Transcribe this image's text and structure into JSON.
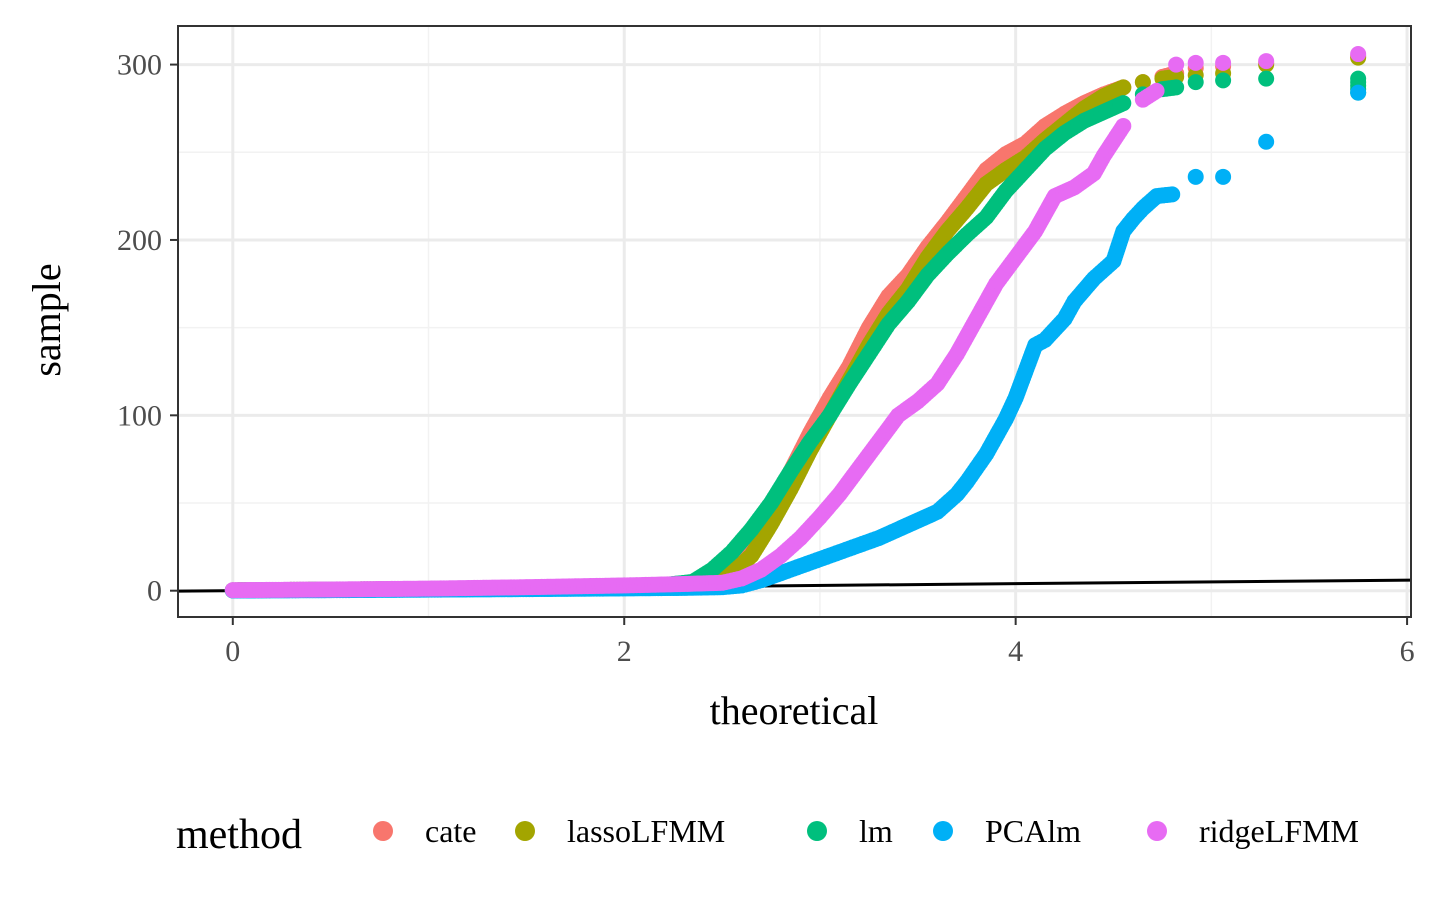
{
  "chart_data": {
    "type": "scatter",
    "title": "",
    "xlabel": "theoretical",
    "ylabel": "sample",
    "xlim": [
      -0.28,
      6.02
    ],
    "ylim": [
      -15,
      322
    ],
    "x_ticks": [
      0,
      2,
      4,
      6
    ],
    "y_ticks": [
      0,
      100,
      200,
      300
    ],
    "x_tick_labels": [
      "0",
      "2",
      "4",
      "6"
    ],
    "y_tick_labels": [
      "0",
      "100",
      "200",
      "300"
    ],
    "grid": true,
    "legend": {
      "title": "method",
      "placement": "bottom"
    },
    "reference_line": {
      "slope": 1,
      "intercept": 0
    },
    "series": [
      {
        "name": "cate",
        "color": "#F8766D",
        "points": [
          [
            0,
            0.2
          ],
          [
            0.5,
            0.6
          ],
          [
            1.0,
            1.0
          ],
          [
            1.5,
            1.6
          ],
          [
            2.0,
            2.5
          ],
          [
            2.2,
            3.2
          ],
          [
            2.35,
            4.5
          ],
          [
            2.45,
            8
          ],
          [
            2.55,
            14
          ],
          [
            2.65,
            25
          ],
          [
            2.75,
            45
          ],
          [
            2.85,
            68
          ],
          [
            2.95,
            90
          ],
          [
            3.05,
            110
          ],
          [
            3.15,
            128
          ],
          [
            3.25,
            150
          ],
          [
            3.35,
            168
          ],
          [
            3.45,
            180
          ],
          [
            3.55,
            196
          ],
          [
            3.65,
            210
          ],
          [
            3.75,
            225
          ],
          [
            3.85,
            240
          ],
          [
            3.95,
            249
          ],
          [
            4.05,
            255
          ],
          [
            4.15,
            265
          ],
          [
            4.25,
            272
          ],
          [
            4.35,
            278
          ],
          [
            4.45,
            283
          ],
          [
            4.55,
            287
          ],
          [
            4.65,
            290
          ],
          [
            4.75,
            293
          ],
          [
            4.82,
            295
          ],
          [
            4.92,
            298
          ],
          [
            5.06,
            299
          ],
          [
            5.28,
            301
          ],
          [
            5.75,
            305
          ]
        ]
      },
      {
        "name": "lassoLFMM",
        "color": "#A3A500",
        "points": [
          [
            0,
            0.2
          ],
          [
            0.5,
            0.6
          ],
          [
            1.0,
            1.0
          ],
          [
            1.5,
            1.6
          ],
          [
            2.0,
            2.5
          ],
          [
            2.2,
            3.2
          ],
          [
            2.35,
            4.2
          ],
          [
            2.45,
            6
          ],
          [
            2.55,
            10
          ],
          [
            2.65,
            20
          ],
          [
            2.75,
            38
          ],
          [
            2.85,
            58
          ],
          [
            2.95,
            80
          ],
          [
            3.05,
            100
          ],
          [
            3.15,
            120
          ],
          [
            3.25,
            140
          ],
          [
            3.35,
            158
          ],
          [
            3.45,
            172
          ],
          [
            3.55,
            190
          ],
          [
            3.65,
            205
          ],
          [
            3.75,
            218
          ],
          [
            3.85,
            232
          ],
          [
            3.95,
            240
          ],
          [
            4.05,
            247
          ],
          [
            4.15,
            257
          ],
          [
            4.25,
            266
          ],
          [
            4.35,
            275
          ],
          [
            4.45,
            282
          ],
          [
            4.55,
            287
          ],
          [
            4.65,
            290
          ],
          [
            4.75,
            292
          ],
          [
            4.82,
            293
          ],
          [
            4.92,
            294
          ],
          [
            5.06,
            295
          ],
          [
            5.28,
            300
          ],
          [
            5.75,
            304
          ]
        ]
      },
      {
        "name": "lm",
        "color": "#00BF7D",
        "points": [
          [
            0,
            0.2
          ],
          [
            0.5,
            0.6
          ],
          [
            1.0,
            1.0
          ],
          [
            1.5,
            1.6
          ],
          [
            2.0,
            2.5
          ],
          [
            2.2,
            3.2
          ],
          [
            2.35,
            5
          ],
          [
            2.45,
            12
          ],
          [
            2.55,
            22
          ],
          [
            2.65,
            35
          ],
          [
            2.75,
            50
          ],
          [
            2.85,
            68
          ],
          [
            2.95,
            85
          ],
          [
            3.05,
            100
          ],
          [
            3.15,
            118
          ],
          [
            3.25,
            135
          ],
          [
            3.35,
            152
          ],
          [
            3.45,
            165
          ],
          [
            3.55,
            180
          ],
          [
            3.65,
            192
          ],
          [
            3.75,
            203
          ],
          [
            3.85,
            213
          ],
          [
            3.95,
            228
          ],
          [
            4.05,
            240
          ],
          [
            4.15,
            252
          ],
          [
            4.25,
            261
          ],
          [
            4.35,
            268
          ],
          [
            4.45,
            273
          ],
          [
            4.55,
            278
          ],
          [
            4.65,
            283
          ],
          [
            4.75,
            286
          ],
          [
            4.82,
            287
          ],
          [
            4.92,
            290
          ],
          [
            5.06,
            291
          ],
          [
            5.28,
            292
          ],
          [
            5.75,
            292
          ],
          [
            5.75,
            284
          ]
        ]
      },
      {
        "name": "PCAlm",
        "color": "#00B0F6",
        "points": [
          [
            0,
            0.1
          ],
          [
            0.5,
            0.3
          ],
          [
            1.0,
            0.6
          ],
          [
            1.5,
            0.9
          ],
          [
            2.0,
            1.3
          ],
          [
            2.3,
            1.6
          ],
          [
            2.5,
            2
          ],
          [
            2.6,
            3
          ],
          [
            2.7,
            6
          ],
          [
            2.8,
            10
          ],
          [
            2.9,
            14
          ],
          [
            3.0,
            18
          ],
          [
            3.1,
            22
          ],
          [
            3.2,
            26
          ],
          [
            3.3,
            30
          ],
          [
            3.4,
            35
          ],
          [
            3.5,
            40
          ],
          [
            3.6,
            45
          ],
          [
            3.7,
            55
          ],
          [
            3.75,
            62
          ],
          [
            3.8,
            70
          ],
          [
            3.85,
            78
          ],
          [
            3.9,
            88
          ],
          [
            3.95,
            98
          ],
          [
            4.0,
            110
          ],
          [
            4.05,
            125
          ],
          [
            4.1,
            140
          ],
          [
            4.15,
            143
          ],
          [
            4.25,
            155
          ],
          [
            4.3,
            165
          ],
          [
            4.4,
            178
          ],
          [
            4.5,
            188
          ],
          [
            4.55,
            205
          ],
          [
            4.6,
            212
          ],
          [
            4.65,
            218
          ],
          [
            4.72,
            225
          ],
          [
            4.8,
            226
          ],
          [
            4.92,
            236
          ],
          [
            5.06,
            236
          ],
          [
            5.28,
            256
          ],
          [
            5.75,
            284
          ]
        ]
      },
      {
        "name": "ridgeLFMM",
        "color": "#E76BF3",
        "points": [
          [
            0,
            0.3
          ],
          [
            0.5,
            0.7
          ],
          [
            1.0,
            1.2
          ],
          [
            1.5,
            2.0
          ],
          [
            2.0,
            3.0
          ],
          [
            2.3,
            3.8
          ],
          [
            2.5,
            4.5
          ],
          [
            2.6,
            7
          ],
          [
            2.7,
            12
          ],
          [
            2.8,
            20
          ],
          [
            2.9,
            30
          ],
          [
            3.0,
            42
          ],
          [
            3.1,
            55
          ],
          [
            3.2,
            70
          ],
          [
            3.3,
            85
          ],
          [
            3.4,
            100
          ],
          [
            3.5,
            108
          ],
          [
            3.6,
            118
          ],
          [
            3.7,
            135
          ],
          [
            3.8,
            155
          ],
          [
            3.9,
            175
          ],
          [
            4.0,
            190
          ],
          [
            4.1,
            205
          ],
          [
            4.2,
            225
          ],
          [
            4.3,
            230
          ],
          [
            4.4,
            238
          ],
          [
            4.45,
            248
          ],
          [
            4.55,
            265
          ],
          [
            4.65,
            280
          ],
          [
            4.72,
            285
          ],
          [
            4.82,
            300
          ],
          [
            4.92,
            301
          ],
          [
            5.06,
            301
          ],
          [
            5.28,
            302
          ],
          [
            5.75,
            306
          ]
        ]
      }
    ]
  }
}
